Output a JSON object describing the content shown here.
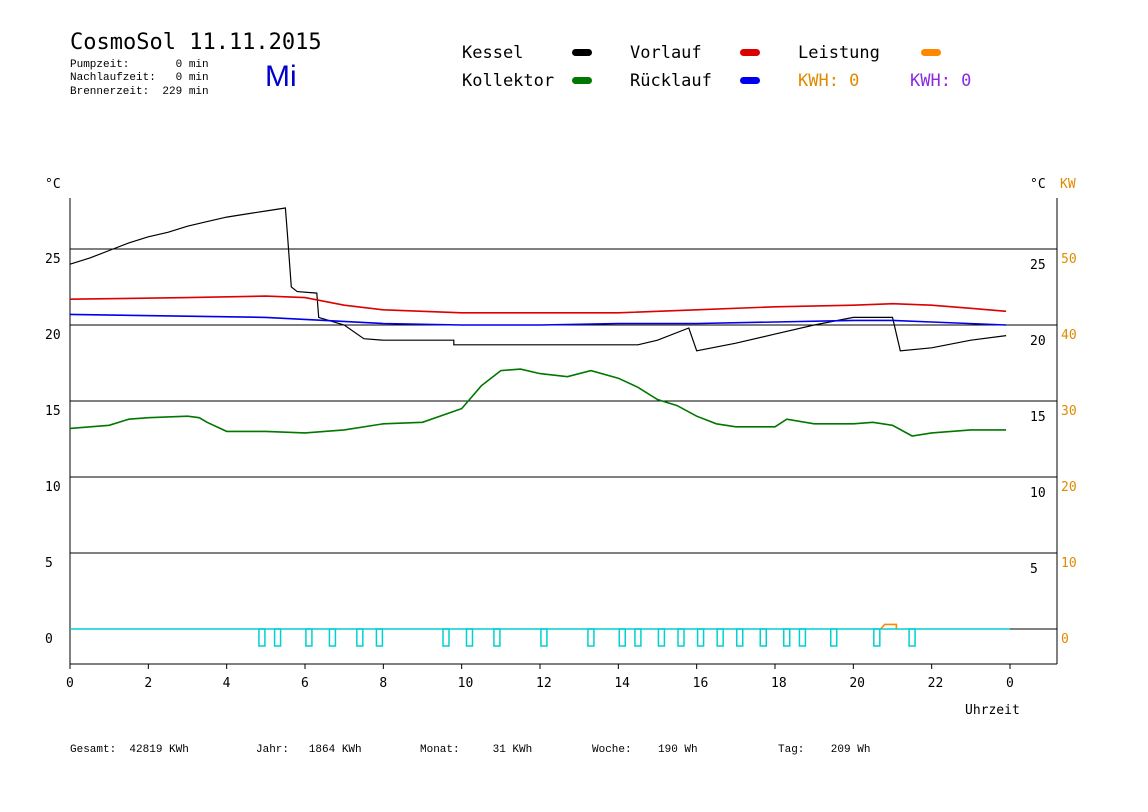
{
  "header": {
    "title": "CosmoSol 11.11.2015",
    "day": "Mi",
    "pumpzeit": "Pumpzeit:       0 min",
    "nachlaufzeit": "Nachlaufzeit:   0 min",
    "brennerzeit": "Brennerzeit:  229 min"
  },
  "legend": {
    "kessel": "Kessel",
    "kollektor": "Kollektor",
    "vorlauf": "Vorlauf",
    "ruecklauf": "Rücklauf",
    "leistung": "Leistung",
    "kwh1": "KWH: 0",
    "kwh2": "KWH: 0",
    "colors": {
      "kessel": "#000000",
      "kollektor": "#007700",
      "vorlauf": "#dd0000",
      "ruecklauf": "#0000ee",
      "leistung": "#ff8800",
      "kwh1": "#e08a00",
      "kwh2": "#8a2be2"
    }
  },
  "footer": {
    "gesamt": "Gesamt:  42819 KWh",
    "jahr": "Jahr:   1864 KWh",
    "monat": "Monat:     31 KWh",
    "woche": "Woche:    190 Wh",
    "tag": "Tag:    209 Wh"
  },
  "chart_data": {
    "type": "line",
    "xlabel": "Uhrzeit",
    "x_ticks": [
      "0",
      "2",
      "4",
      "6",
      "8",
      "10",
      "12",
      "14",
      "16",
      "18",
      "20",
      "22",
      "0"
    ],
    "xlim": [
      0,
      24
    ],
    "y_left_label": "°C",
    "y_left_ticks": [
      0,
      5,
      10,
      15,
      20,
      25
    ],
    "y_right_label": "°C",
    "y_right_kw_label": "KW",
    "y_right_ticks": [
      5,
      10,
      15,
      20,
      25
    ],
    "y_right_kw_ticks": [
      0,
      10,
      20,
      30,
      40,
      50
    ],
    "ylim": [
      -2.3,
      28.5
    ],
    "grid_y": [
      0,
      5,
      10,
      15,
      20,
      25
    ],
    "series": [
      {
        "name": "Kessel",
        "color": "#000000",
        "points": [
          [
            0,
            24
          ],
          [
            0.5,
            24.4
          ],
          [
            1,
            24.9
          ],
          [
            1.5,
            25.4
          ],
          [
            2,
            25.8
          ],
          [
            2.5,
            26.1
          ],
          [
            3,
            26.5
          ],
          [
            3.5,
            26.8
          ],
          [
            4,
            27.1
          ],
          [
            4.5,
            27.3
          ],
          [
            5,
            27.5
          ],
          [
            5.5,
            27.7
          ],
          [
            5.55,
            26
          ],
          [
            5.65,
            22.5
          ],
          [
            5.8,
            22.2
          ],
          [
            6.3,
            22.1
          ],
          [
            6.35,
            20.5
          ],
          [
            7,
            20
          ],
          [
            7.5,
            19.1
          ],
          [
            8,
            19
          ],
          [
            9.8,
            19
          ],
          [
            9.8,
            18.7
          ],
          [
            14.5,
            18.7
          ],
          [
            15,
            19
          ],
          [
            15.8,
            19.8
          ],
          [
            16,
            18.3
          ],
          [
            17,
            18.8
          ],
          [
            18,
            19.4
          ],
          [
            19,
            20
          ],
          [
            20,
            20.5
          ],
          [
            21,
            20.5
          ],
          [
            21.2,
            18.3
          ],
          [
            22,
            18.5
          ],
          [
            23,
            19
          ],
          [
            23.9,
            19.3
          ]
        ]
      },
      {
        "name": "Vorlauf",
        "color": "#dd0000",
        "points": [
          [
            0,
            21.7
          ],
          [
            3,
            21.8
          ],
          [
            5,
            21.9
          ],
          [
            6,
            21.8
          ],
          [
            7,
            21.3
          ],
          [
            8,
            21
          ],
          [
            10,
            20.8
          ],
          [
            12,
            20.8
          ],
          [
            14,
            20.8
          ],
          [
            16,
            21
          ],
          [
            18,
            21.2
          ],
          [
            20,
            21.3
          ],
          [
            21,
            21.4
          ],
          [
            22,
            21.3
          ],
          [
            23,
            21.1
          ],
          [
            23.9,
            20.9
          ]
        ]
      },
      {
        "name": "Rücklauf",
        "color": "#0000ee",
        "points": [
          [
            0,
            20.7
          ],
          [
            5,
            20.5
          ],
          [
            6.5,
            20.3
          ],
          [
            8,
            20.1
          ],
          [
            10,
            20
          ],
          [
            12,
            20
          ],
          [
            14,
            20.1
          ],
          [
            16,
            20.1
          ],
          [
            18,
            20.2
          ],
          [
            20,
            20.3
          ],
          [
            21,
            20.3
          ],
          [
            22,
            20.2
          ],
          [
            23.9,
            20
          ]
        ]
      },
      {
        "name": "Kollektor",
        "color": "#007700",
        "points": [
          [
            0,
            13.2
          ],
          [
            1,
            13.4
          ],
          [
            1.5,
            13.8
          ],
          [
            2,
            13.9
          ],
          [
            3,
            14
          ],
          [
            3.3,
            13.9
          ],
          [
            3.5,
            13.6
          ],
          [
            4,
            13
          ],
          [
            5,
            13
          ],
          [
            6,
            12.9
          ],
          [
            7,
            13.1
          ],
          [
            8,
            13.5
          ],
          [
            9,
            13.6
          ],
          [
            10,
            14.5
          ],
          [
            10.5,
            16
          ],
          [
            11,
            17
          ],
          [
            11.5,
            17.1
          ],
          [
            12,
            16.8
          ],
          [
            12.7,
            16.6
          ],
          [
            13.3,
            17
          ],
          [
            14,
            16.5
          ],
          [
            14.5,
            15.9
          ],
          [
            15,
            15.1
          ],
          [
            15.5,
            14.7
          ],
          [
            16,
            14
          ],
          [
            16.5,
            13.5
          ],
          [
            17,
            13.3
          ],
          [
            18,
            13.3
          ],
          [
            18.3,
            13.8
          ],
          [
            19,
            13.5
          ],
          [
            20,
            13.5
          ],
          [
            20.5,
            13.6
          ],
          [
            21,
            13.4
          ],
          [
            21.5,
            12.7
          ],
          [
            22,
            12.9
          ],
          [
            23,
            13.1
          ],
          [
            23.9,
            13.1
          ]
        ]
      },
      {
        "name": "Leistung",
        "color": "#ff8800",
        "points": [
          [
            20.7,
            0
          ],
          [
            20.8,
            0.3
          ],
          [
            21.1,
            0.3
          ],
          [
            21.1,
            0
          ]
        ]
      }
    ],
    "pump_pulses": [
      4.9,
      5.3,
      6.1,
      6.7,
      7.4,
      7.9,
      9.6,
      10.2,
      10.9,
      12.1,
      13.3,
      14.1,
      14.5,
      15.1,
      15.6,
      16.1,
      16.6,
      17.1,
      17.7,
      18.3,
      18.7,
      19.5,
      20.6,
      21.5
    ],
    "pump_color": "#00d0d0"
  }
}
